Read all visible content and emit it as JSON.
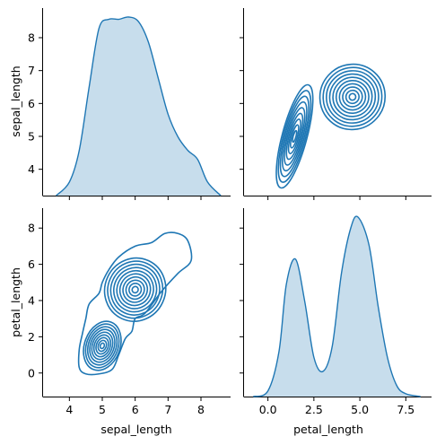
{
  "chart_data": {
    "type": "pairplot-kde",
    "variables": [
      "sepal_length",
      "petal_length"
    ],
    "colors": {
      "series": "#1f77b4"
    },
    "axes": {
      "sepal_length": {
        "range": [
          3.2,
          8.9
        ],
        "ticks": [
          4,
          5,
          6,
          7,
          8
        ],
        "label": "sepal_length"
      },
      "petal_length": {
        "range": [
          -1.3,
          9.1
        ],
        "ticks": [
          0,
          2,
          4,
          6,
          8
        ],
        "label": "petal_length"
      },
      "petal_length_x": {
        "range": [
          -1.3,
          8.9
        ],
        "ticks": [
          0.0,
          2.5,
          5.0,
          7.5
        ],
        "tick_labels": [
          "0.0",
          "2.5",
          "5.0",
          "7.5"
        ],
        "label": "petal_length"
      }
    },
    "panels": [
      {
        "id": "diag-sepal",
        "kind": "kde-1d",
        "variable": "sepal_length",
        "x": [
          3.6,
          4.0,
          4.3,
          4.6,
          4.9,
          5.2,
          5.5,
          5.8,
          6.1,
          6.4,
          6.7,
          7.0,
          7.3,
          7.6,
          7.9,
          8.2,
          8.6
        ],
        "density": [
          0.0,
          0.03,
          0.1,
          0.24,
          0.37,
          0.39,
          0.39,
          0.395,
          0.385,
          0.34,
          0.26,
          0.18,
          0.13,
          0.1,
          0.08,
          0.03,
          0.0
        ]
      },
      {
        "id": "diag-petal",
        "kind": "kde-1d",
        "variable": "petal_length",
        "x": [
          -0.8,
          0.0,
          0.6,
          1.0,
          1.5,
          2.0,
          2.5,
          3.0,
          3.5,
          4.0,
          4.5,
          4.9,
          5.5,
          6.0,
          6.5,
          7.0,
          7.5,
          8.3
        ],
        "density": [
          0.0,
          0.01,
          0.08,
          0.2,
          0.245,
          0.17,
          0.07,
          0.045,
          0.09,
          0.22,
          0.3,
          0.32,
          0.27,
          0.16,
          0.07,
          0.02,
          0.005,
          0.0
        ]
      },
      {
        "id": "kde2d-lower",
        "kind": "kde-2d",
        "x_variable": "sepal_length",
        "y_variable": "petal_length",
        "modes": [
          {
            "center": [
              5.0,
              1.5
            ],
            "angle_deg": 20,
            "levels": 9,
            "rx_max": 0.6,
            "ry_max": 1.55
          },
          {
            "center": [
              6.0,
              4.6
            ],
            "angle_deg": 25,
            "levels": 10,
            "rx_max": 1.15,
            "ry_max": 2.2
          }
        ],
        "outer_contour": [
          [
            4.3,
            0.3
          ],
          [
            4.5,
            -0.05
          ],
          [
            4.9,
            -0.05
          ],
          [
            5.3,
            0.2
          ],
          [
            5.5,
            1.0
          ],
          [
            5.7,
            1.9
          ],
          [
            5.9,
            2.3
          ],
          [
            6.0,
            3.0
          ],
          [
            6.3,
            3.3
          ],
          [
            6.8,
            4.5
          ],
          [
            7.3,
            5.5
          ],
          [
            7.7,
            6.2
          ],
          [
            7.6,
            7.3
          ],
          [
            7.3,
            7.7
          ],
          [
            6.9,
            7.7
          ],
          [
            6.5,
            7.2
          ],
          [
            6.0,
            7.0
          ],
          [
            5.5,
            6.4
          ],
          [
            5.2,
            5.7
          ],
          [
            5.0,
            5.0
          ],
          [
            4.9,
            4.4
          ],
          [
            4.6,
            3.8
          ],
          [
            4.5,
            3.0
          ],
          [
            4.4,
            2.2
          ],
          [
            4.3,
            1.3
          ],
          [
            4.3,
            0.3
          ]
        ]
      },
      {
        "id": "kde2d-upper",
        "kind": "kde-2d",
        "x_variable": "petal_length",
        "y_variable": "sepal_length",
        "modes": [
          {
            "center": [
              1.45,
              5.0
            ],
            "angle_deg": 15,
            "levels": 9,
            "rx_max": 0.75,
            "ry_max": 1.8
          },
          {
            "center": [
              4.6,
              6.2
            ],
            "angle_deg": 42,
            "levels": 10,
            "rx_max": 2.2,
            "ry_max": 1.25
          }
        ]
      }
    ]
  }
}
